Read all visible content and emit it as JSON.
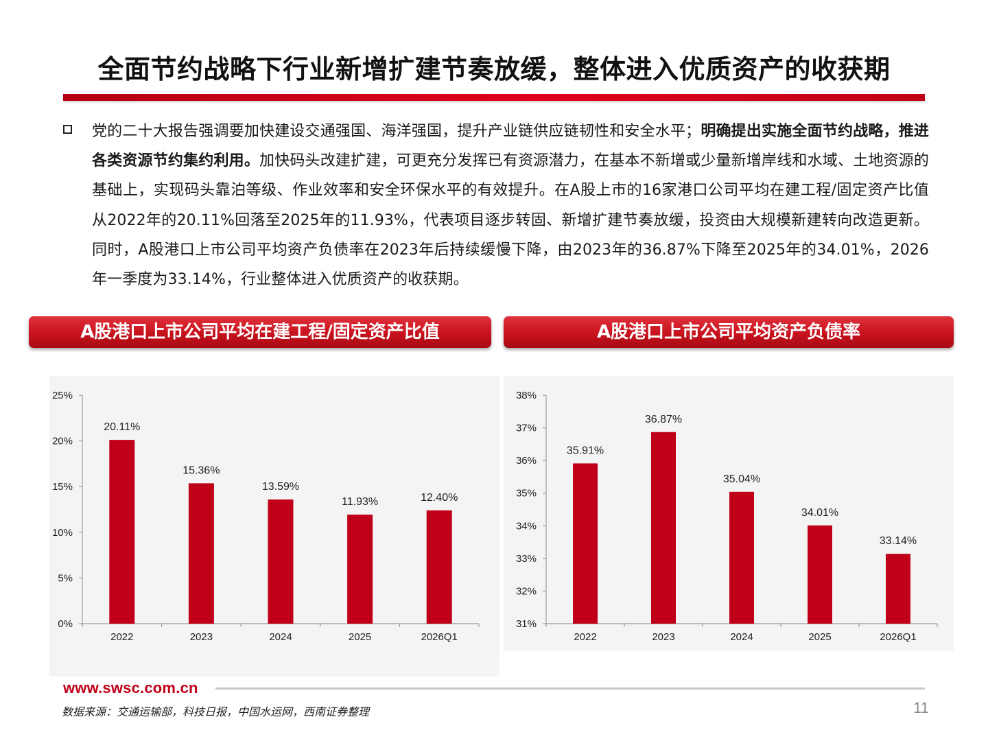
{
  "title": "全面节约战略下行业新增扩建节奏放缓，整体进入优质资产的收获期",
  "body": {
    "part1": "党的二十大报告强调要加快建设交通强国、海洋强国，提升产业链供应链韧性和安全水平；",
    "bold": "明确提出实施全面节约战略，推进各类资源节约集约利用。",
    "part2": "加快码头改建扩建，可更充分发挥已有资源潜力，在基本不新增或少量新增岸线和水域、土地资源的基础上，实现码头靠泊等级、作业效率和安全环保水平的有效提升。在A股上市的16家港口公司平均在建工程/固定资产比值从2022年的20.11%回落至2025年的11.93%，代表项目逐步转固、新增扩建节奏放缓，投资由大规模新建转向改造更新。同时，A股港口上市公司平均资产负债率在2023年后持续缓慢下降，由2023年的36.87%下降至2025年的34.01%，2026年一季度为33.14%，行业整体进入优质资产的收获期。"
  },
  "banners": {
    "left": "A股港口上市公司平均在建工程/固定资产比值",
    "right": "A股港口上市公司平均资产负债率"
  },
  "chart_data": [
    {
      "type": "bar",
      "categories": [
        "2022",
        "2023",
        "2024",
        "2025",
        "2026Q1"
      ],
      "values": [
        20.11,
        15.36,
        13.59,
        11.93,
        12.4
      ],
      "data_labels": [
        "20.11%",
        "15.36%",
        "13.59%",
        "11.93%",
        "12.40%"
      ],
      "y_ticks": [
        "0%",
        "5%",
        "10%",
        "15%",
        "20%",
        "25%"
      ],
      "ylim": [
        0,
        25
      ],
      "ytick_step": 5,
      "bar_color": "#c00018"
    },
    {
      "type": "bar",
      "categories": [
        "2022",
        "2023",
        "2024",
        "2025",
        "2026Q1"
      ],
      "values": [
        35.91,
        36.87,
        35.04,
        34.01,
        33.14
      ],
      "data_labels": [
        "35.91%",
        "36.87%",
        "35.04%",
        "34.01%",
        "33.14%"
      ],
      "y_ticks": [
        "31%",
        "32%",
        "33%",
        "34%",
        "35%",
        "36%",
        "37%",
        "38%"
      ],
      "ylim": [
        31,
        38
      ],
      "ytick_step": 1,
      "bar_color": "#c00018"
    }
  ],
  "footer": {
    "url": "www.swsc.com.cn",
    "source": "数据来源：交通运输部，科技日报，中国水运网，西南证券整理",
    "page": "11"
  }
}
